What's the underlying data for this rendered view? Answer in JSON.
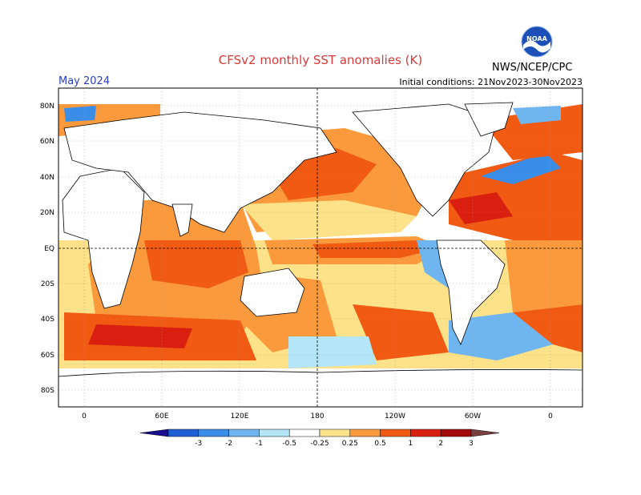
{
  "header": {
    "title": "CFSv2 monthly SST anomalies (K)",
    "valid_month": "May 2024",
    "initial_conditions": "Initial conditions: 21Nov2023-30Nov2023",
    "agency": "NWS/NCEP/CPC",
    "logo_text": "NOAA"
  },
  "axes": {
    "lat_labels": [
      "80N",
      "60N",
      "40N",
      "20N",
      "EQ",
      "20S",
      "40S",
      "60S",
      "80S"
    ],
    "lon_labels": [
      "0",
      "60E",
      "120E",
      "180",
      "120W",
      "60W",
      "0"
    ]
  },
  "colorbar": {
    "ticks": [
      "-3",
      "-2",
      "-1",
      "-0.5",
      "-0.25",
      "0.25",
      "0.5",
      "1",
      "2",
      "3"
    ],
    "colors": [
      "#1a0f8c",
      "#1f5fd6",
      "#3b8ee8",
      "#6fb6f0",
      "#b4e6f7",
      "#ffffff",
      "#fde28a",
      "#fb9a3c",
      "#f05a12",
      "#d92010",
      "#a30a0a",
      "#7a4040"
    ]
  }
}
